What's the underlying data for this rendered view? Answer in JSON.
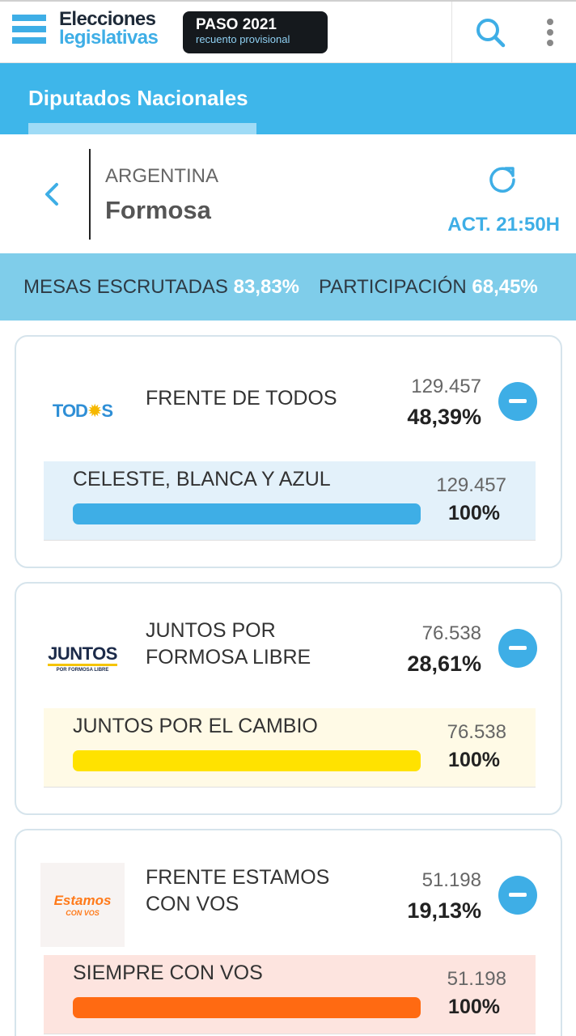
{
  "header": {
    "logo_line1": "Elecciones",
    "logo_line2": "legislativas",
    "badge_title": "PASO 2021",
    "badge_subtitle": "recuento provisional",
    "icons": [
      "menu-stripes-icon",
      "search-icon",
      "more-vert-icon"
    ]
  },
  "category": {
    "tab_label": "Diputados Nacionales"
  },
  "location": {
    "country": "ARGENTINA",
    "province": "Formosa",
    "update_label": "ACT. 21:50H"
  },
  "stats": {
    "mesas_label": "MESAS ESCRUTADAS",
    "mesas_value": "83,83%",
    "participacion_label": "PARTICIPACIÓN",
    "participacion_value": "68,45%"
  },
  "parties": [
    {
      "logo_text": "TOD",
      "logo_sun": "✹",
      "logo_text2": "S",
      "name": "FRENTE DE TODOS",
      "votes": "129.457",
      "percent": "48,39%",
      "list": {
        "name": "CELESTE, BLANCA Y AZUL",
        "votes": "129.457",
        "percent": "100%",
        "fill": 1.0,
        "color": "#3eaee6",
        "bg": "#e3f1fa"
      }
    },
    {
      "logo_text": "JUNTOS",
      "logo_sub": "POR FORMOSA LIBRE",
      "name_line1": "JUNTOS POR",
      "name_line2": "FORMOSA LIBRE",
      "votes": "76.538",
      "percent": "28,61%",
      "list": {
        "name": "JUNTOS POR EL CAMBIO",
        "votes": "76.538",
        "percent": "100%",
        "fill": 1.0,
        "color": "#ffe200",
        "bg": "#fffae6"
      }
    },
    {
      "logo_text": "Estamos",
      "logo_sub": "CON VOS",
      "name_line1": "FRENTE ESTAMOS",
      "name_line2": "CON VOS",
      "votes": "51.198",
      "percent": "19,13%",
      "list": {
        "name": "SIEMPRE CON VOS",
        "votes": "51.198",
        "percent": "100%",
        "fill": 1.0,
        "color": "#ff6a12",
        "bg": "#fde4df"
      }
    }
  ]
}
